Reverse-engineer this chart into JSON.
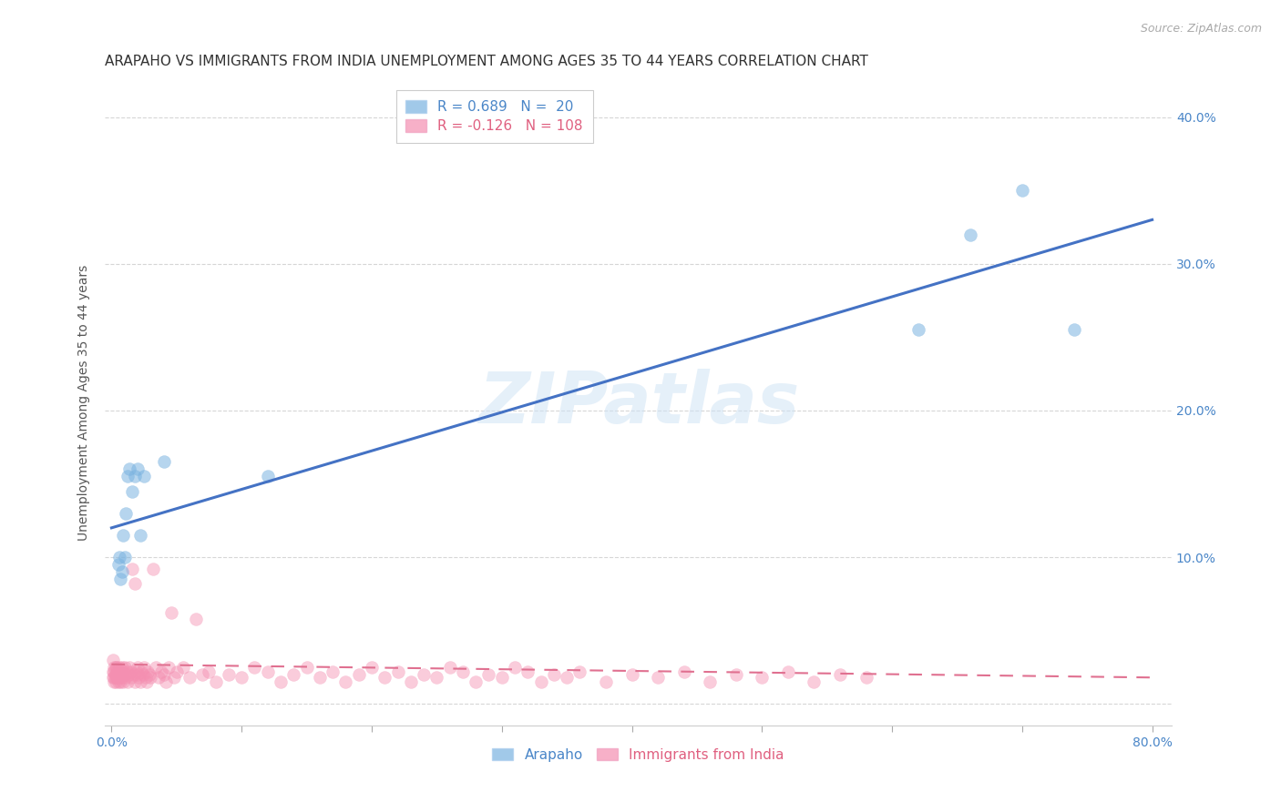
{
  "title": "ARAPAHO VS IMMIGRANTS FROM INDIA UNEMPLOYMENT AMONG AGES 35 TO 44 YEARS CORRELATION CHART",
  "source": "Source: ZipAtlas.com",
  "ylabel": "Unemployment Among Ages 35 to 44 years",
  "xlim": [
    -0.005,
    0.815
  ],
  "ylim": [
    -0.015,
    0.425
  ],
  "xtick_positions": [
    0.0,
    0.1,
    0.2,
    0.3,
    0.4,
    0.5,
    0.6,
    0.7,
    0.8
  ],
  "xticklabels": [
    "0.0%",
    "",
    "",
    "",
    "",
    "",
    "",
    "",
    "80.0%"
  ],
  "ytick_positions": [
    0.0,
    0.1,
    0.2,
    0.3,
    0.4
  ],
  "yticklabels": [
    "",
    "10.0%",
    "20.0%",
    "30.0%",
    "40.0%"
  ],
  "background_color": "#ffffff",
  "grid_color": "#cccccc",
  "watermark_text": "ZIPatlas",
  "legend_R1": "R = 0.689",
  "legend_N1": "N =  20",
  "legend_R2": "R = -0.126",
  "legend_N2": "N = 108",
  "arapaho_color": "#7ab3e0",
  "india_color": "#f48fb1",
  "arapaho_line_color": "#4472c4",
  "india_line_color": "#e07090",
  "arapaho_x": [
    0.005,
    0.006,
    0.007,
    0.008,
    0.009,
    0.01,
    0.011,
    0.012,
    0.014,
    0.016,
    0.018,
    0.02,
    0.022,
    0.025,
    0.04,
    0.12,
    0.62,
    0.66,
    0.7,
    0.74
  ],
  "arapaho_y": [
    0.095,
    0.1,
    0.085,
    0.09,
    0.115,
    0.1,
    0.13,
    0.155,
    0.16,
    0.145,
    0.155,
    0.16,
    0.115,
    0.155,
    0.165,
    0.155,
    0.255,
    0.32,
    0.35,
    0.255
  ],
  "india_x": [
    0.001,
    0.001,
    0.001,
    0.002,
    0.002,
    0.002,
    0.002,
    0.003,
    0.003,
    0.003,
    0.003,
    0.004,
    0.004,
    0.004,
    0.005,
    0.005,
    0.005,
    0.006,
    0.006,
    0.006,
    0.007,
    0.007,
    0.008,
    0.008,
    0.008,
    0.009,
    0.009,
    0.01,
    0.01,
    0.011,
    0.012,
    0.012,
    0.013,
    0.014,
    0.015,
    0.015,
    0.016,
    0.017,
    0.018,
    0.018,
    0.019,
    0.02,
    0.02,
    0.021,
    0.022,
    0.023,
    0.024,
    0.025,
    0.026,
    0.027,
    0.028,
    0.029,
    0.03,
    0.032,
    0.034,
    0.036,
    0.038,
    0.04,
    0.042,
    0.044,
    0.046,
    0.048,
    0.05,
    0.055,
    0.06,
    0.065,
    0.07,
    0.075,
    0.08,
    0.09,
    0.1,
    0.11,
    0.12,
    0.13,
    0.14,
    0.15,
    0.16,
    0.17,
    0.18,
    0.19,
    0.2,
    0.21,
    0.22,
    0.23,
    0.24,
    0.25,
    0.26,
    0.27,
    0.28,
    0.29,
    0.3,
    0.31,
    0.32,
    0.33,
    0.34,
    0.35,
    0.36,
    0.38,
    0.4,
    0.42,
    0.44,
    0.46,
    0.48,
    0.5,
    0.52,
    0.54,
    0.56,
    0.58
  ],
  "india_y": [
    0.022,
    0.018,
    0.03,
    0.015,
    0.022,
    0.025,
    0.018,
    0.02,
    0.025,
    0.015,
    0.018,
    0.022,
    0.018,
    0.025,
    0.02,
    0.015,
    0.022,
    0.018,
    0.025,
    0.02,
    0.015,
    0.022,
    0.025,
    0.02,
    0.018,
    0.015,
    0.022,
    0.02,
    0.025,
    0.018,
    0.022,
    0.015,
    0.02,
    0.025,
    0.018,
    0.022,
    0.092,
    0.02,
    0.082,
    0.015,
    0.022,
    0.02,
    0.025,
    0.018,
    0.015,
    0.022,
    0.02,
    0.025,
    0.018,
    0.015,
    0.022,
    0.02,
    0.018,
    0.092,
    0.025,
    0.018,
    0.022,
    0.02,
    0.015,
    0.025,
    0.062,
    0.018,
    0.022,
    0.025,
    0.018,
    0.058,
    0.02,
    0.022,
    0.015,
    0.02,
    0.018,
    0.025,
    0.022,
    0.015,
    0.02,
    0.025,
    0.018,
    0.022,
    0.015,
    0.02,
    0.025,
    0.018,
    0.022,
    0.015,
    0.02,
    0.018,
    0.025,
    0.022,
    0.015,
    0.02,
    0.018,
    0.025,
    0.022,
    0.015,
    0.02,
    0.018,
    0.022,
    0.015,
    0.02,
    0.018,
    0.022,
    0.015,
    0.02,
    0.018,
    0.022,
    0.015,
    0.02,
    0.018
  ],
  "arapaho_trendline_x": [
    0.0,
    0.8
  ],
  "arapaho_trendline_y": [
    0.12,
    0.33
  ],
  "india_trendline_x": [
    0.0,
    0.8
  ],
  "india_trendline_y": [
    0.027,
    0.018
  ],
  "marker_size": 100,
  "marker_alpha_arapaho": 0.55,
  "marker_alpha_india": 0.45,
  "title_fontsize": 11,
  "axis_label_fontsize": 10,
  "tick_fontsize": 10,
  "legend_fontsize": 11,
  "source_fontsize": 9
}
